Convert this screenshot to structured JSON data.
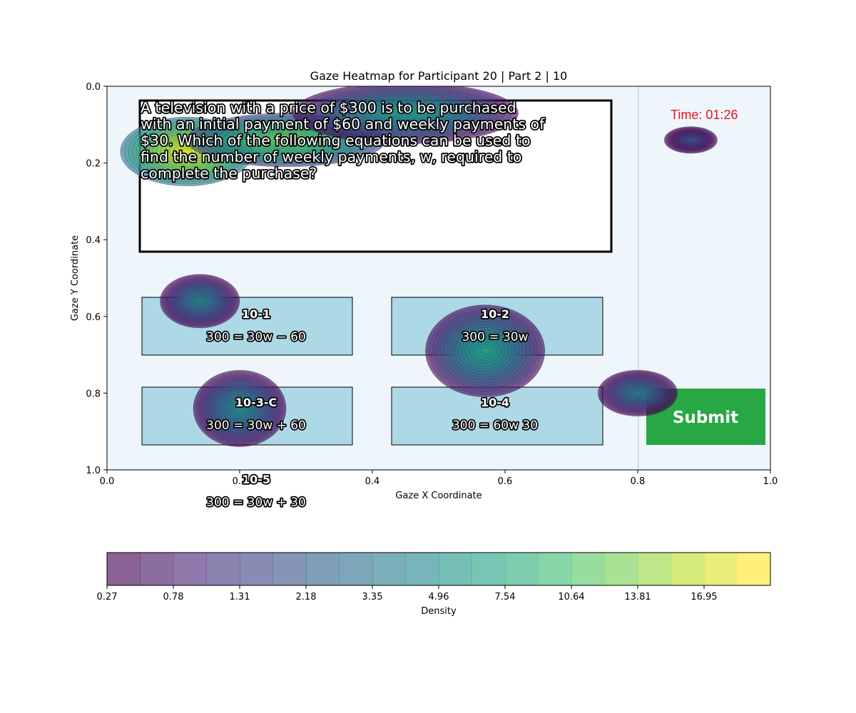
{
  "chart_data": {
    "type": "heatmap",
    "title": "Gaze Heatmap for Participant 20 | Part 2 | 10",
    "xlabel": "Gaze X Coordinate",
    "ylabel": "Gaze Y Coordinate",
    "xlim": [
      0.0,
      1.0
    ],
    "ylim": [
      1.0,
      0.0
    ],
    "x_ticks": [
      "0.0",
      "0.2",
      "0.4",
      "0.6",
      "0.8",
      "1.0"
    ],
    "y_ticks": [
      "0.0",
      "0.2",
      "0.4",
      "0.6",
      "0.8",
      "1.0"
    ],
    "colorbar": {
      "label": "Density",
      "ticks": [
        "0.27",
        "0.78",
        "1.31",
        "2.18",
        "3.35",
        "4.96",
        "7.54",
        "10.64",
        "13.81",
        "16.95"
      ],
      "colormap": "viridis"
    },
    "gaze_hotspots": [
      {
        "x": 0.12,
        "y": 0.17,
        "spread_x": 0.1,
        "spread_y": 0.09,
        "peak": 18.5
      },
      {
        "x": 0.27,
        "y": 0.14,
        "spread_x": 0.15,
        "spread_y": 0.07,
        "peak": 9.0
      },
      {
        "x": 0.45,
        "y": 0.07,
        "spread_x": 0.17,
        "spread_y": 0.08,
        "peak": 3.5
      },
      {
        "x": 0.14,
        "y": 0.56,
        "spread_x": 0.06,
        "spread_y": 0.07,
        "peak": 2.2
      },
      {
        "x": 0.2,
        "y": 0.84,
        "spread_x": 0.07,
        "spread_y": 0.1,
        "peak": 2.6
      },
      {
        "x": 0.57,
        "y": 0.69,
        "spread_x": 0.09,
        "spread_y": 0.12,
        "peak": 3.6
      },
      {
        "x": 0.8,
        "y": 0.8,
        "spread_x": 0.06,
        "spread_y": 0.06,
        "peak": 2.0
      },
      {
        "x": 0.88,
        "y": 0.14,
        "spread_x": 0.04,
        "spread_y": 0.035,
        "peak": 1.1
      }
    ]
  },
  "screen": {
    "question": [
      "A television with a price of $300 is to be purchased",
      "with an initial payment of $60 and weekly payments of",
      "$30. Which of the following equations can be used to",
      "find the number of weekly payments, w, required to",
      "complete the purchase?"
    ],
    "timer": "Time: 01:26",
    "submit_label": "Submit",
    "options": [
      {
        "label": "10-1",
        "equation": "300 = 30w − 60"
      },
      {
        "label": "10-2",
        "equation": "300 = 30w"
      },
      {
        "label": "10-3-C",
        "equation": "300 = 30w + 60"
      },
      {
        "label": "10-4",
        "equation": "300 = 60w 30"
      },
      {
        "label": "10-5",
        "equation": "300 = 30w + 30"
      }
    ],
    "colors": {
      "background": "#eef6fc",
      "option_fill": "#add8e6",
      "submit_fill": "#28a745",
      "timer_color": "#e8141e"
    }
  }
}
